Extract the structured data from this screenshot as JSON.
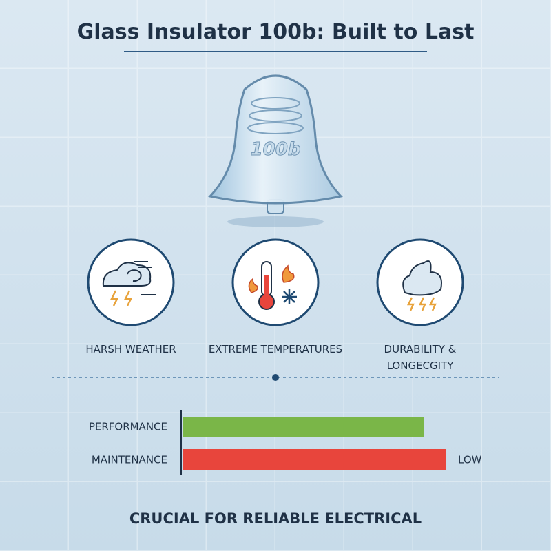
{
  "header": {
    "title": "Glass Insulator 100b: Built to Last"
  },
  "illustration": {
    "label": "100b"
  },
  "features": [
    {
      "lines": [
        "HARSH WEATHER"
      ]
    },
    {
      "lines": [
        "EXTREME TEMPERATURES"
      ]
    },
    {
      "lines": [
        "DURABILITY &",
        "LONGECGITY"
      ]
    }
  ],
  "comparison": {
    "rows": [
      {
        "label": "PERFORMANCE"
      },
      {
        "label": "MAINTENANCE",
        "note": "LOW"
      }
    ]
  },
  "footer": {
    "text": "CRUCIAL FOR RELIABLE ELECTRICAL"
  }
}
